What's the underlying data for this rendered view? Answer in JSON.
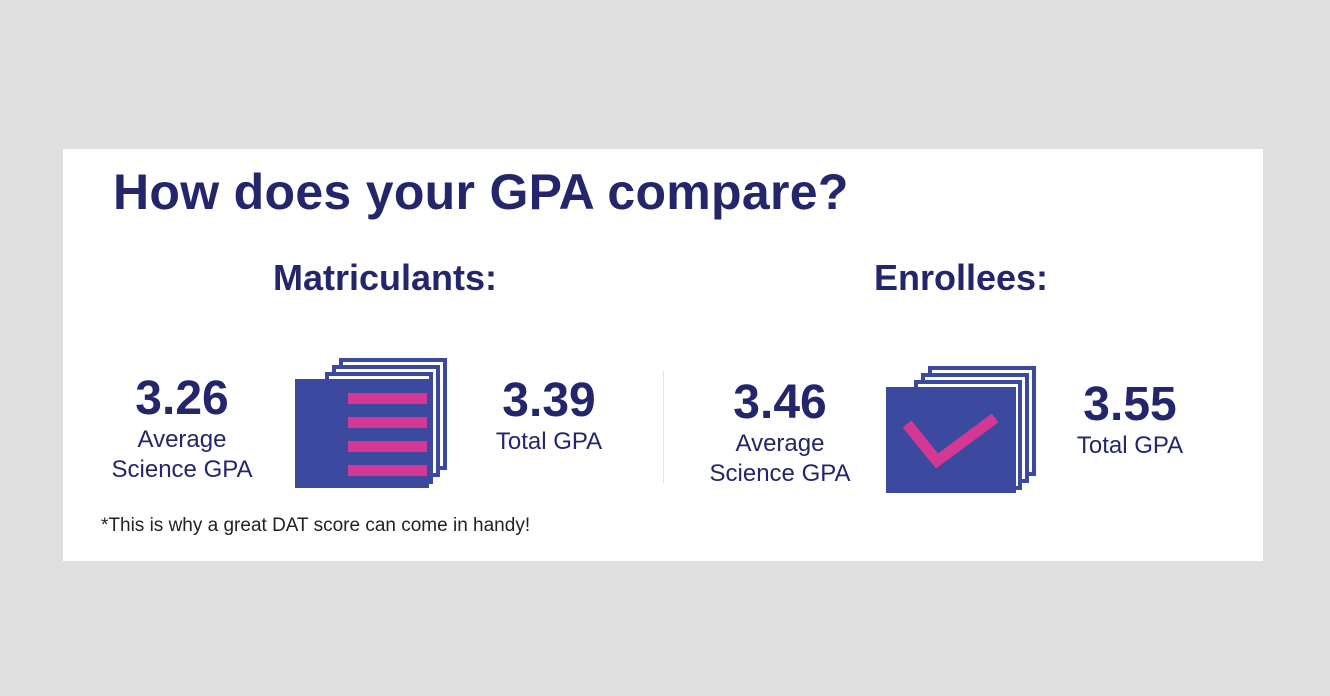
{
  "title": "How does your GPA compare?",
  "colors": {
    "navy": "#23266b",
    "blue": "#3b4a9f",
    "pink": "#d53795",
    "background": "#e0e0e0",
    "card": "#ffffff"
  },
  "matriculants": {
    "heading": "Matriculants:",
    "science_gpa": {
      "value": "3.26",
      "label_line1": "Average",
      "label_line2": "Science GPA"
    },
    "total_gpa": {
      "value": "3.39",
      "label": "Total GPA"
    },
    "icon": "stacked-list-icon"
  },
  "enrollees": {
    "heading": "Enrollees:",
    "science_gpa": {
      "value": "3.46",
      "label_line1": "Average",
      "label_line2": "Science GPA"
    },
    "total_gpa": {
      "value": "3.55",
      "label": "Total GPA"
    },
    "icon": "stacked-checkmark-icon"
  },
  "footnote": "*This is why a great DAT score can come in handy!"
}
